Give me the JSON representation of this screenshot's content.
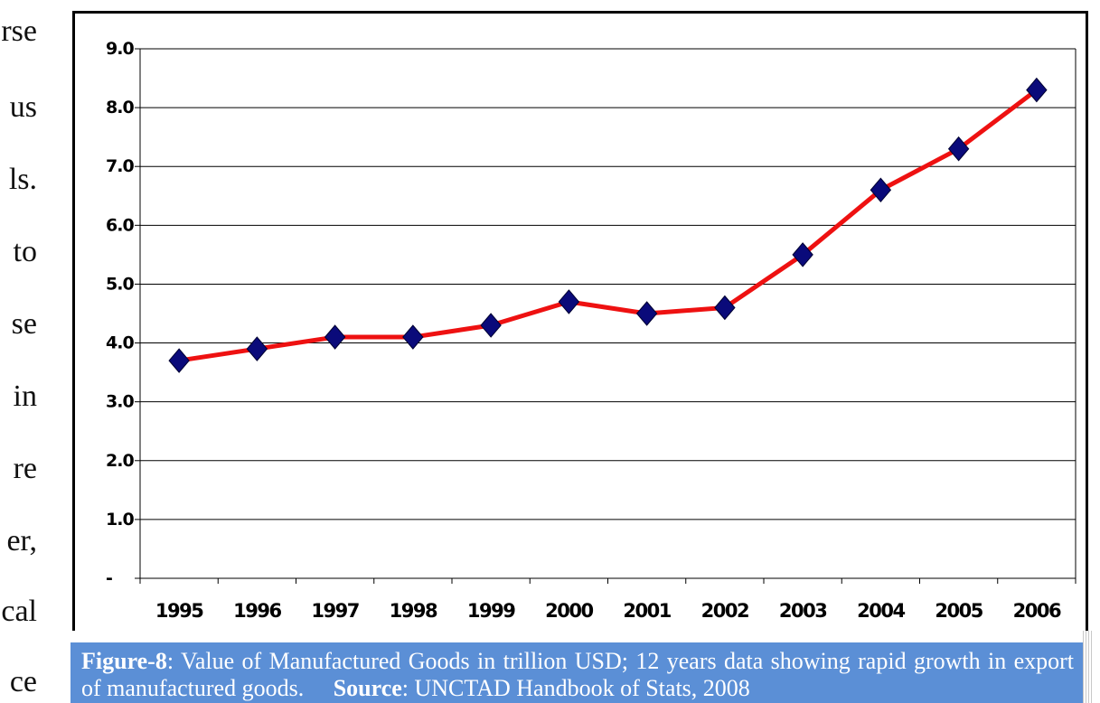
{
  "side_text": [
    "rse",
    "us",
    "ls.",
    "to",
    "se",
    "in",
    "re",
    "er,",
    "cal",
    "ce"
  ],
  "caption": {
    "figure_label": "Figure-8",
    "text": ": Value of Manufactured Goods in trillion USD; 12 years data showing rapid growth in export of manufactured goods.",
    "source_label": "Source",
    "source_text": ": UNCTAD Handbook of Stats, 2008"
  },
  "colors": {
    "line": "#ee1111",
    "marker": "#0a0a7a",
    "caption_bg": "#5b8fd6"
  },
  "chart_data": {
    "type": "line",
    "title": "",
    "xlabel": "",
    "ylabel": "",
    "categories": [
      "1995",
      "1996",
      "1997",
      "1998",
      "1999",
      "2000",
      "2001",
      "2002",
      "2003",
      "2004",
      "2005",
      "2006"
    ],
    "series": [
      {
        "values": [
          3.7,
          3.9,
          4.1,
          4.1,
          4.3,
          4.7,
          4.5,
          4.6,
          5.5,
          6.6,
          7.3,
          8.3
        ]
      }
    ],
    "ylim": [
      0,
      9
    ],
    "yticks": [
      0,
      1,
      2,
      3,
      4,
      5,
      6,
      7,
      8,
      9
    ],
    "ytick_labels": [
      "-",
      "1.0",
      "2.0",
      "3.0",
      "4.0",
      "5.0",
      "6.0",
      "7.0",
      "8.0",
      "9.0"
    ],
    "grid": true,
    "legend": "none",
    "marker": "diamond"
  }
}
